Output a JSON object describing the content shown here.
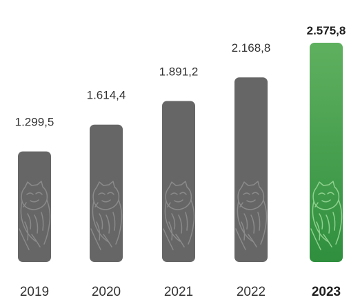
{
  "chart_data": {
    "type": "bar",
    "categories": [
      "2019",
      "2020",
      "2021",
      "2022",
      "2023"
    ],
    "values": [
      1299.5,
      1614.4,
      1891.2,
      2168.8,
      2575.8
    ],
    "value_labels": [
      "1.299,5",
      "1.614,4",
      "1.891,2",
      "2.168,8",
      "2.575,8"
    ],
    "highlight_index": 4,
    "title": "",
    "xlabel": "",
    "ylabel": "",
    "ylim": [
      0,
      2575.8
    ],
    "grid": false,
    "legend": "none",
    "colors": {
      "bar": "#666666",
      "highlight_bar_top": "#5fb05f",
      "highlight_bar_bottom": "#2f8f3e",
      "bar_art_stroke": "#8a8a8a",
      "highlight_art_stroke": "#8fd18f"
    },
    "bar_illustration_icon": "cat-line-art-icon"
  }
}
